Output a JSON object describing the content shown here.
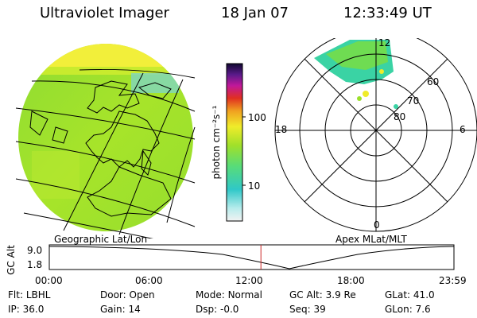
{
  "header": {
    "instrument": "Ultraviolet Imager",
    "date": "18 Jan 07",
    "time": "12:33:49 UT"
  },
  "colors": {
    "earth_fill": "#9be02a",
    "auroral_fill": "#3ad3a4",
    "timeline_marker": "#cc2a2a"
  },
  "colorbar": {
    "unit": "photon cm⁻²s⁻¹",
    "ticks": [
      "100",
      "10"
    ]
  },
  "geo_panel": {
    "label": "Geographic Lat/Lon"
  },
  "polar_panel": {
    "label": "Apex MLat/MLT",
    "mlt_labels": {
      "top": "12",
      "left": "18",
      "right": "6",
      "bottom": "0"
    },
    "lat_labels": [
      "60",
      "70",
      "80"
    ]
  },
  "timeline": {
    "ylabel": "GC Alt",
    "y_ticks": [
      "9.0",
      "1.8"
    ],
    "x_ticks": [
      "00:00",
      "06:00",
      "12:00",
      "18:00",
      "23:59"
    ],
    "current_time_fraction": 0.523
  },
  "info": {
    "flt_label": "Flt:",
    "flt_value": "LBHL",
    "ip_label": "IP:",
    "ip_value": "36.0",
    "door_label": "Door:",
    "door_value": "Open",
    "gain_label": "Gain:",
    "gain_value": "14",
    "mode_label": "Mode:",
    "mode_value": "Normal",
    "dsp_label": "Dsp:",
    "dsp_value": "-0.0",
    "gcalt_label": "GC Alt:",
    "gcalt_value": "3.9 Re",
    "seq_label": "Seq:",
    "seq_value": "39",
    "glat_label": "GLat:",
    "glat_value": "41.0",
    "glon_label": "GLon:",
    "glon_value": "7.6"
  }
}
